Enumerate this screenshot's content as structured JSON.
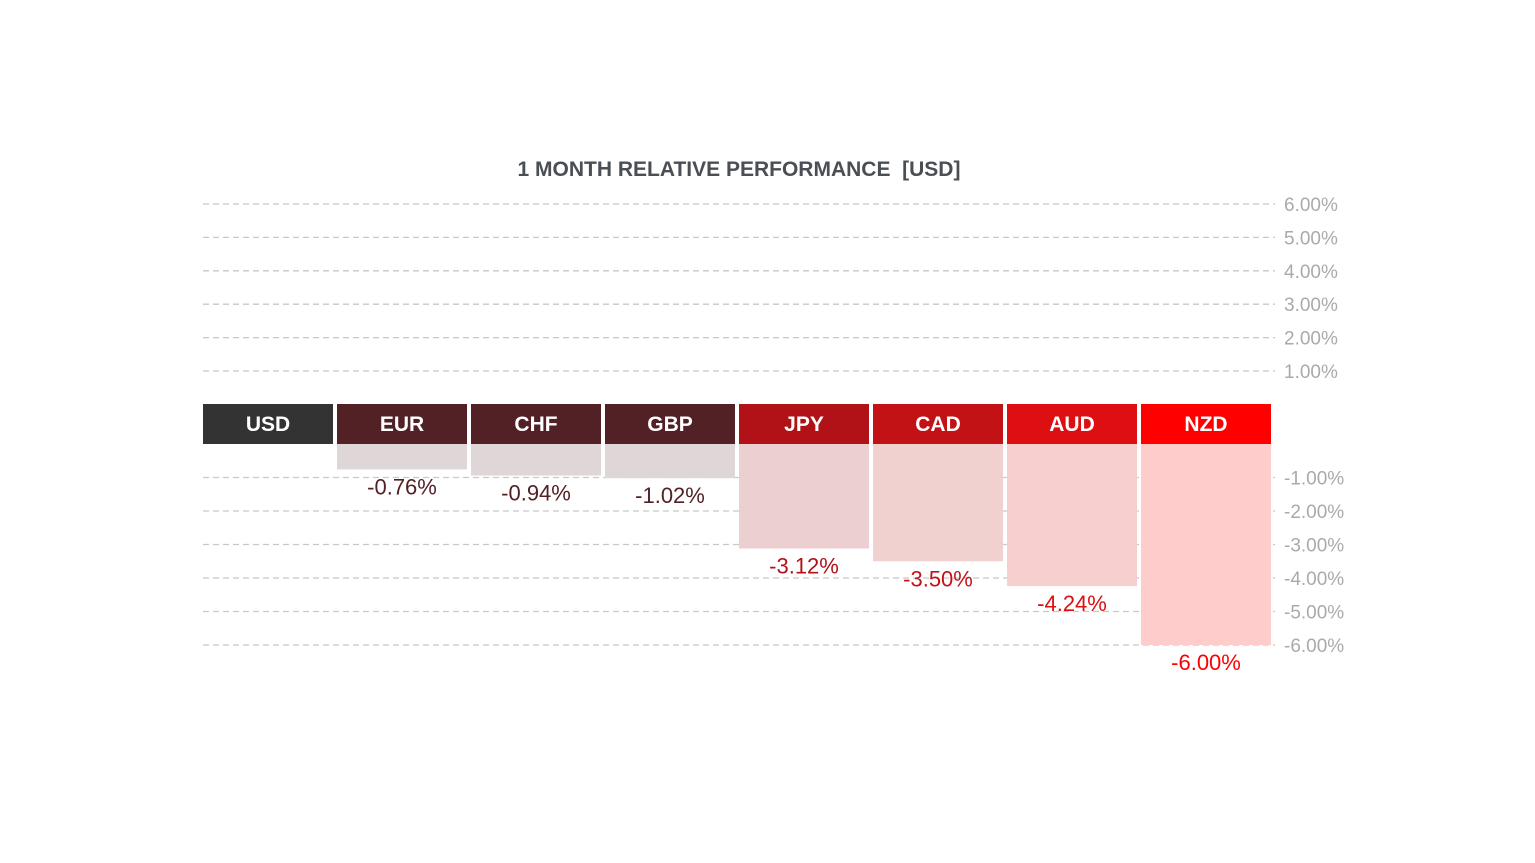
{
  "chart_data": {
    "type": "bar",
    "title": "1 MONTH RELATIVE PERFORMANCE  [USD]",
    "categories": [
      "USD",
      "EUR",
      "CHF",
      "GBP",
      "JPY",
      "CAD",
      "AUD",
      "NZD"
    ],
    "values": [
      0,
      -0.76,
      -0.94,
      -1.02,
      -3.12,
      -3.5,
      -4.24,
      -6.0
    ],
    "value_labels": [
      "",
      "-0.76%",
      "-0.94%",
      "-1.02%",
      "-3.12%",
      "-3.50%",
      "-4.24%",
      "-6.00%"
    ],
    "positive_ticks": [
      {
        "value": 6,
        "label": "6.00%"
      },
      {
        "value": 5,
        "label": "5.00%"
      },
      {
        "value": 4,
        "label": "4.00%"
      },
      {
        "value": 3,
        "label": "3.00%"
      },
      {
        "value": 2,
        "label": "2.00%"
      },
      {
        "value": 1,
        "label": "1.00%"
      }
    ],
    "negative_ticks": [
      {
        "value": -1,
        "label": "-1.00%"
      },
      {
        "value": -2,
        "label": "-2.00%"
      },
      {
        "value": -3,
        "label": "-3.00%"
      },
      {
        "value": -4,
        "label": "-4.00%"
      },
      {
        "value": -5,
        "label": "-5.00%"
      },
      {
        "value": -6,
        "label": "-6.00%"
      }
    ],
    "ylim": [
      -6,
      6
    ],
    "grid": true,
    "colors": {
      "header": [
        "#333333",
        "#522126",
        "#522126",
        "#522126",
        "#b01217",
        "#c31216",
        "#dd0f12",
        "#ff0000"
      ],
      "bar": [
        "#ffffff",
        "#dfd6d7",
        "#dfd6d7",
        "#dfd6d7",
        "#ecd0d1",
        "#f1d0d0",
        "#f7cfcf",
        "#ffcccc"
      ],
      "label": [
        "#333333",
        "#522126",
        "#522126",
        "#522126",
        "#b01217",
        "#c31216",
        "#dd0f12",
        "#ff0000"
      ],
      "header_text": "#ffffff",
      "grid": "#c8c8c8",
      "tick_text": "#aaaaaa",
      "title_text": "#4a4f55"
    }
  }
}
